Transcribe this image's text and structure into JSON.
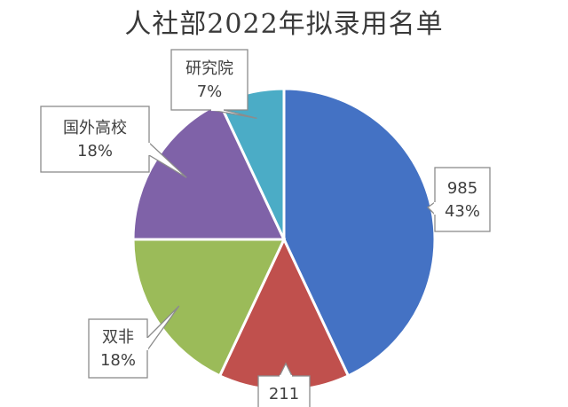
{
  "chart_data": {
    "type": "pie",
    "title": "人社部2022年拟录用名单",
    "slices": [
      {
        "name": "985",
        "value": 43,
        "label": "43%",
        "color": "#4472c4"
      },
      {
        "name": "211",
        "value": 14,
        "label": "",
        "color": "#c0504d"
      },
      {
        "name": "双非",
        "value": 18,
        "label": "18%",
        "color": "#9bbb59"
      },
      {
        "name": "国外高校",
        "value": 18,
        "label": "18%",
        "color": "#7f62a8"
      },
      {
        "name": "研究院",
        "value": 7,
        "label": "7%",
        "color": "#4bacc6"
      }
    ]
  }
}
